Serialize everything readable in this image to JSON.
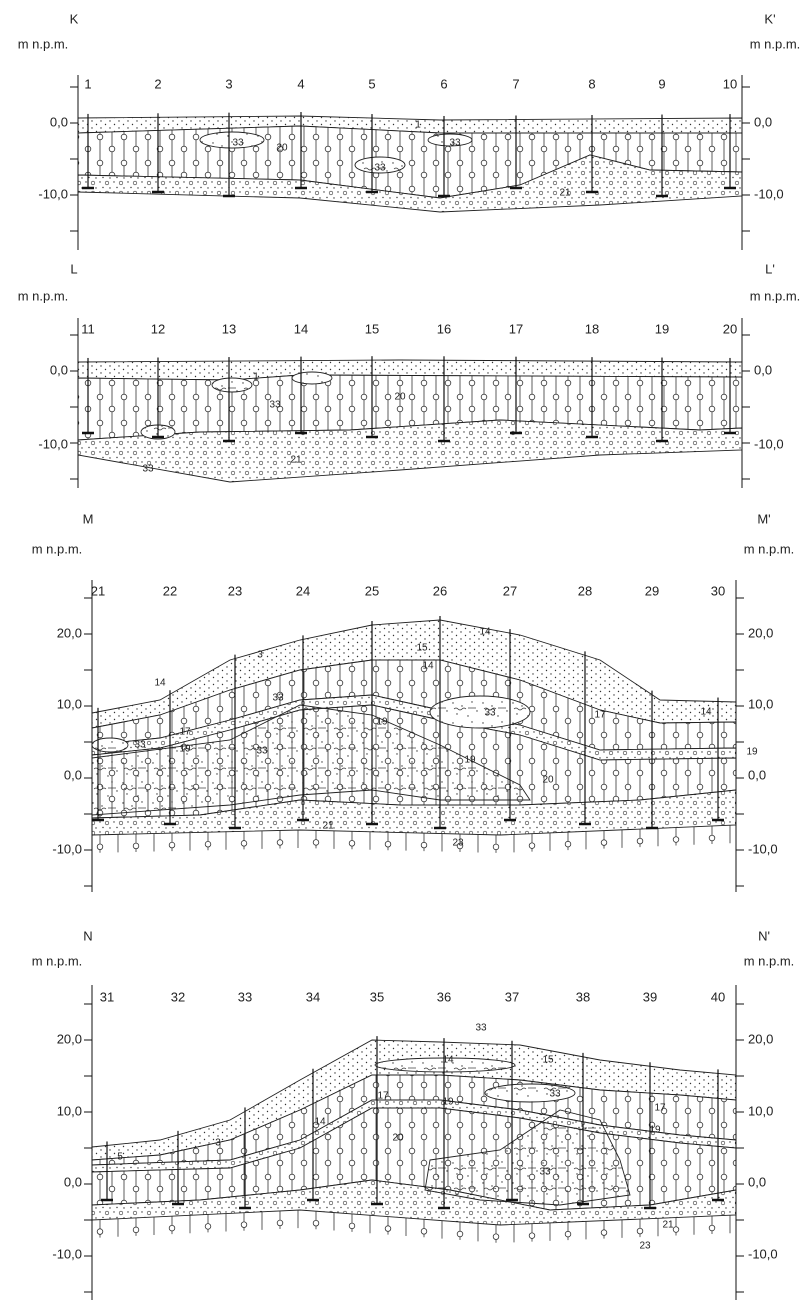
{
  "sections": [
    {
      "id_left": "K",
      "id_right": "K'",
      "unit": "m n.p.m.",
      "boreholes": [
        "1",
        "2",
        "3",
        "4",
        "5",
        "6",
        "7",
        "8",
        "9",
        "10"
      ],
      "depth_labels": [
        "0,0",
        "-10,0"
      ],
      "layer_labels": [
        "33",
        "20",
        "33",
        "1",
        "33",
        "21"
      ]
    },
    {
      "id_left": "L",
      "id_right": "L'",
      "unit": "m n.p.m.",
      "boreholes": [
        "11",
        "12",
        "13",
        "14",
        "15",
        "16",
        "17",
        "18",
        "19",
        "20"
      ],
      "depth_labels": [
        "0,0",
        "-10,0"
      ],
      "layer_labels": [
        "1",
        "33",
        "20",
        "21",
        "33"
      ]
    },
    {
      "id_left": "M",
      "id_right": "M'",
      "unit": "m n.p.m.",
      "boreholes": [
        "21",
        "22",
        "23",
        "24",
        "25",
        "26",
        "27",
        "28",
        "29",
        "30"
      ],
      "depth_labels": [
        "20,0",
        "10,0",
        "0,0",
        "-10,0"
      ],
      "layer_labels": [
        "14",
        "3",
        "14",
        "15",
        "14",
        "14",
        "17",
        "19",
        "33",
        "33",
        "33",
        "19",
        "33",
        "17",
        "19",
        "20",
        "19",
        "21",
        "23"
      ]
    },
    {
      "id_left": "N",
      "id_right": "N'",
      "unit": "m n.p.m.",
      "boreholes": [
        "31",
        "32",
        "33",
        "34",
        "35",
        "36",
        "37",
        "38",
        "39",
        "40"
      ],
      "depth_labels": [
        "20,0",
        "10,0",
        "0,0",
        "-10,0"
      ],
      "layer_labels": [
        "5",
        "3",
        "14",
        "17",
        "14",
        "33",
        "15",
        "33",
        "19",
        "20",
        "33",
        "17",
        "19",
        "21",
        "23"
      ]
    }
  ]
}
